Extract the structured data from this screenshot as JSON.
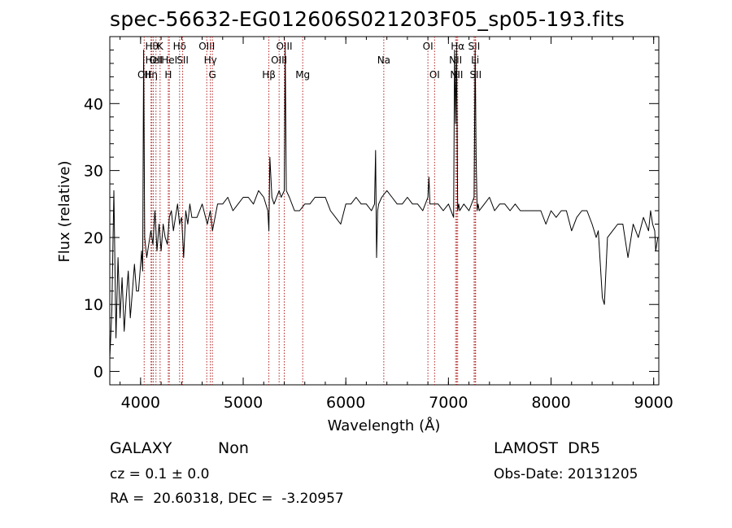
{
  "title": "spec-56632-EG012606S021203F05_sp05-193.fits",
  "info": {
    "class": "GALAXY",
    "subclass": "Non",
    "cz": "cz = 0.1 ± 0.0",
    "coords": "RA =  20.60318, DEC =  -3.20957",
    "survey": "LAMOST  DR5",
    "obs_date": "Obs-Date: 20131205"
  },
  "colors": {
    "spectrum": "#000000",
    "line_marker": "#b22222",
    "axes": "#000000"
  },
  "chart_data": {
    "type": "line",
    "title": "spec-56632-EG012606S021203F05_sp05-193.fits",
    "xlabel": "Wavelength (Å)",
    "ylabel": "Flux (relative)",
    "xlim": [
      3700,
      9050
    ],
    "ylim": [
      -2,
      50
    ],
    "xticks": [
      4000,
      5000,
      6000,
      7000,
      8000,
      9000
    ],
    "yticks": [
      0,
      10,
      20,
      30,
      40
    ],
    "grid": false,
    "series": [
      {
        "name": "",
        "x": [
          3700,
          3720,
          3740,
          3760,
          3780,
          3800,
          3820,
          3840,
          3860,
          3880,
          3900,
          3920,
          3940,
          3960,
          3980,
          4000,
          4010,
          4020,
          4030,
          4040,
          4060,
          4080,
          4100,
          4120,
          4140,
          4160,
          4180,
          4200,
          4220,
          4240,
          4260,
          4280,
          4300,
          4320,
          4340,
          4360,
          4380,
          4400,
          4420,
          4440,
          4460,
          4480,
          4500,
          4550,
          4600,
          4650,
          4680,
          4700,
          4750,
          4800,
          4850,
          4900,
          4950,
          5000,
          5050,
          5100,
          5150,
          5200,
          5240,
          5250,
          5260,
          5280,
          5300,
          5350,
          5370,
          5400,
          5410,
          5420,
          5450,
          5500,
          5550,
          5600,
          5650,
          5700,
          5750,
          5800,
          5850,
          5900,
          5950,
          6000,
          6050,
          6100,
          6150,
          6200,
          6250,
          6280,
          6290,
          6300,
          6310,
          6320,
          6350,
          6400,
          6450,
          6500,
          6550,
          6600,
          6650,
          6700,
          6750,
          6800,
          6810,
          6820,
          6850,
          6900,
          6950,
          7000,
          7050,
          7060,
          7070,
          7080,
          7090,
          7100,
          7110,
          7150,
          7200,
          7250,
          7260,
          7270,
          7280,
          7290,
          7300,
          7350,
          7400,
          7450,
          7500,
          7550,
          7600,
          7650,
          7700,
          7750,
          7800,
          7850,
          7900,
          7950,
          8000,
          8050,
          8100,
          8150,
          8200,
          8250,
          8300,
          8350,
          8400,
          8440,
          8460,
          8480,
          8500,
          8520,
          8550,
          8600,
          8650,
          8700,
          8750,
          8800,
          8850,
          8900,
          8950,
          8970,
          8990,
          9010,
          9020,
          9040
        ],
        "y": [
          2,
          9,
          27,
          5,
          17,
          8,
          14,
          6,
          11,
          15,
          8,
          12,
          16,
          12,
          12,
          16,
          18,
          15,
          48,
          20,
          17,
          19,
          21,
          19,
          24,
          18,
          22,
          18,
          22,
          20,
          19,
          23,
          24,
          21,
          23,
          25,
          22,
          23,
          17,
          24,
          22,
          25,
          23,
          23,
          25,
          22,
          24,
          21,
          25,
          25,
          26,
          24,
          25,
          26,
          26,
          25,
          27,
          26,
          24,
          21,
          32,
          26,
          25,
          27,
          26,
          27,
          48,
          27,
          26,
          24,
          24,
          25,
          25,
          26,
          26,
          26,
          24,
          23,
          22,
          25,
          25,
          26,
          25,
          25,
          24,
          25,
          33,
          17,
          24,
          25,
          26,
          27,
          26,
          25,
          25,
          26,
          25,
          25,
          24,
          26,
          29,
          25,
          25,
          25,
          24,
          25,
          23,
          48,
          37,
          48,
          24,
          25,
          24,
          25,
          24,
          26,
          48,
          32,
          24,
          25,
          24,
          25,
          26,
          24,
          25,
          25,
          24,
          25,
          24,
          24,
          24,
          24,
          24,
          22,
          24,
          23,
          24,
          24,
          21,
          23,
          24,
          24,
          22,
          20,
          21,
          16,
          11,
          10,
          20,
          21,
          22,
          22,
          17,
          22,
          20,
          23,
          21,
          24,
          22,
          21,
          18,
          20
        ]
      }
    ],
    "line_markers": [
      {
        "x": 4035,
        "labels": [
          "OII"
        ],
        "row": 2
      },
      {
        "x": 4102,
        "labels": [
          "Hη"
        ],
        "row": 2
      },
      {
        "x": 4110,
        "labels": [
          "Hθ"
        ],
        "row": 0
      },
      {
        "x": 4125,
        "labels": [
          "HeI"
        ],
        "row": 1
      },
      {
        "x": 4150,
        "labels": [
          "OII"
        ],
        "row": 1
      },
      {
        "x": 4190,
        "labels": [
          "K"
        ],
        "row": 0
      },
      {
        "x": 4270,
        "labels": [
          "H"
        ],
        "row": 2
      },
      {
        "x": 4280,
        "labels": [
          "HeI"
        ],
        "row": 1
      },
      {
        "x": 4380,
        "labels": [
          "Hδ"
        ],
        "row": 0
      },
      {
        "x": 4410,
        "labels": [
          "SII"
        ],
        "row": 1
      },
      {
        "x": 4645,
        "labels": [
          "OIII"
        ],
        "row": 0
      },
      {
        "x": 4680,
        "labels": [
          "Hγ"
        ],
        "row": 1
      },
      {
        "x": 4700,
        "labels": [
          "G"
        ],
        "row": 2
      },
      {
        "x": 5250,
        "labels": [
          "Hβ"
        ],
        "row": 2
      },
      {
        "x": 5350,
        "labels": [
          "OIII"
        ],
        "row": 1
      },
      {
        "x": 5400,
        "labels": [
          "OIII"
        ],
        "row": 0
      },
      {
        "x": 5580,
        "labels": [
          "Mg"
        ],
        "row": 2
      },
      {
        "x": 6370,
        "labels": [
          "Na"
        ],
        "row": 1
      },
      {
        "x": 6800,
        "labels": [
          "OI"
        ],
        "row": 0
      },
      {
        "x": 6865,
        "labels": [
          "OI"
        ],
        "row": 2
      },
      {
        "x": 7070,
        "labels": [
          "NII"
        ],
        "row": 1
      },
      {
        "x": 7080,
        "labels": [
          "NII"
        ],
        "row": 2
      },
      {
        "x": 7090,
        "labels": [
          "Hα"
        ],
        "row": 0
      },
      {
        "x": 7250,
        "labels": [
          "SII"
        ],
        "row": 0
      },
      {
        "x": 7260,
        "labels": [
          "Li"
        ],
        "row": 1
      },
      {
        "x": 7265,
        "labels": [
          "SII"
        ],
        "row": 2
      }
    ]
  }
}
